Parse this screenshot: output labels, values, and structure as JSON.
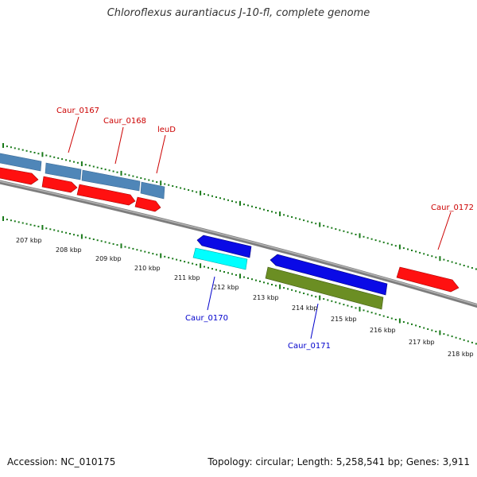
{
  "title": "Chloroflexus aurantiacus J-10-fl, complete genome",
  "footer": {
    "accession": "Accession: NC_010175",
    "topology": "Topology: circular; Length: 5,258,541 bp; Genes: 3,911"
  },
  "colors": {
    "backbone": "#888888",
    "tick": "#1a7a1a",
    "gene_label_plus": "#cc0000",
    "gene_label_minus": "#0000cc",
    "steelblue": "#4f86b8",
    "red": "#ff0000",
    "blue": "#0000ee",
    "cyan": "#00ffff",
    "olive": "#6b8e23"
  },
  "scale_labels": [
    "207 kbp",
    "208 kbp",
    "209 kbp",
    "210 kbp",
    "211 kbp",
    "212 kbp",
    "213 kbp",
    "214 kbp",
    "215 kbp",
    "216 kbp",
    "217 kbp",
    "218 kbp"
  ],
  "gene_labels": {
    "caur_0167": "Caur_0167",
    "caur_0168": "Caur_0168",
    "leuD": "leuD",
    "caur_0170": "Caur_0170",
    "caur_0171": "Caur_0171",
    "caur_0172": "Caur_0172"
  }
}
